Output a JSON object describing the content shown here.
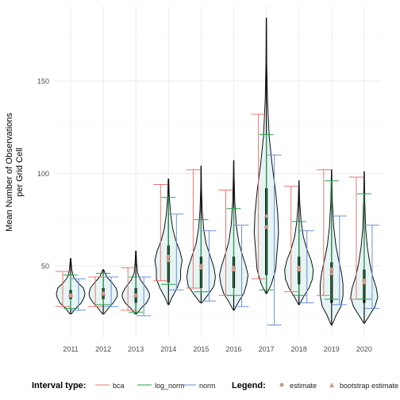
{
  "chart_data": {
    "type": "violin",
    "title": "",
    "xlabel": "",
    "ylabel_lines": [
      "Mean Number of Observations",
      "per Grid Cell"
    ],
    "categories": [
      "2011",
      "2012",
      "2013",
      "2014",
      "2015",
      "2016",
      "2017",
      "2018",
      "2019",
      "2020"
    ],
    "y_ticks": [
      50,
      100,
      150
    ],
    "ylim": [
      17,
      186
    ],
    "grid": true,
    "colors": {
      "bca": "#E8776F",
      "log_norm": "#1FA34A",
      "norm": "#6A8FD9",
      "violin_fill": "#E6F4F4",
      "points": "#C9998A"
    },
    "legend": {
      "placement": "bottom",
      "interval_title": "Interval type:",
      "interval_items": [
        "bca",
        "log_norm",
        "norm"
      ],
      "marker_title": "Legend:",
      "marker_items": [
        "estimate",
        "bootstrap estimate"
      ]
    },
    "violins": [
      {
        "year": "2011",
        "min": 24,
        "max": 54,
        "q1": 32,
        "med": 35,
        "q3": 37,
        "profile": [
          [
            24,
            0.05
          ],
          [
            27,
            0.35
          ],
          [
            30,
            0.75
          ],
          [
            33,
            0.95
          ],
          [
            35,
            1.0
          ],
          [
            38,
            0.9
          ],
          [
            41,
            0.5
          ],
          [
            44,
            0.2
          ],
          [
            48,
            0.08
          ],
          [
            54,
            0.02
          ]
        ]
      },
      {
        "year": "2012",
        "min": 24,
        "max": 48,
        "q1": 32,
        "med": 35,
        "q3": 38,
        "profile": [
          [
            24,
            0.05
          ],
          [
            27,
            0.35
          ],
          [
            30,
            0.7
          ],
          [
            33,
            0.95
          ],
          [
            35,
            1.0
          ],
          [
            38,
            0.9
          ],
          [
            41,
            0.6
          ],
          [
            44,
            0.25
          ],
          [
            47,
            0.08
          ],
          [
            48,
            0.03
          ]
        ]
      },
      {
        "year": "2013",
        "min": 24,
        "max": 58,
        "q1": 30,
        "med": 34,
        "q3": 38,
        "profile": [
          [
            24,
            0.05
          ],
          [
            27,
            0.35
          ],
          [
            30,
            0.75
          ],
          [
            33,
            0.95
          ],
          [
            35,
            0.95
          ],
          [
            38,
            0.75
          ],
          [
            42,
            0.35
          ],
          [
            46,
            0.12
          ],
          [
            52,
            0.05
          ],
          [
            58,
            0.02
          ]
        ]
      },
      {
        "year": "2014",
        "min": 29,
        "max": 97,
        "q1": 41,
        "med": 54,
        "q3": 61,
        "profile": [
          [
            29,
            0.03
          ],
          [
            33,
            0.25
          ],
          [
            38,
            0.6
          ],
          [
            43,
            0.85
          ],
          [
            48,
            0.85
          ],
          [
            53,
            0.95
          ],
          [
            58,
            0.8
          ],
          [
            64,
            0.5
          ],
          [
            70,
            0.3
          ],
          [
            78,
            0.15
          ],
          [
            88,
            0.05
          ],
          [
            97,
            0.02
          ]
        ]
      },
      {
        "year": "2015",
        "min": 30,
        "max": 104,
        "q1": 38,
        "med": 48,
        "q3": 55,
        "profile": [
          [
            30,
            0.05
          ],
          [
            34,
            0.45
          ],
          [
            39,
            0.9
          ],
          [
            44,
            1.0
          ],
          [
            49,
            0.9
          ],
          [
            55,
            0.65
          ],
          [
            62,
            0.35
          ],
          [
            70,
            0.18
          ],
          [
            80,
            0.08
          ],
          [
            92,
            0.03
          ],
          [
            104,
            0.01
          ]
        ]
      },
      {
        "year": "2016",
        "min": 26,
        "max": 107,
        "q1": 38,
        "med": 46,
        "q3": 55,
        "profile": [
          [
            26,
            0.03
          ],
          [
            30,
            0.3
          ],
          [
            35,
            0.7
          ],
          [
            40,
            0.9
          ],
          [
            45,
            1.0
          ],
          [
            50,
            0.85
          ],
          [
            56,
            0.6
          ],
          [
            63,
            0.35
          ],
          [
            72,
            0.18
          ],
          [
            85,
            0.07
          ],
          [
            100,
            0.02
          ],
          [
            107,
            0.01
          ]
        ]
      },
      {
        "year": "2017",
        "min": 35,
        "max": 184,
        "q1": 45,
        "med": 63,
        "q3": 92,
        "profile": [
          [
            35,
            0.03
          ],
          [
            40,
            0.35
          ],
          [
            48,
            0.65
          ],
          [
            58,
            0.75
          ],
          [
            68,
            0.85
          ],
          [
            78,
            0.8
          ],
          [
            90,
            0.65
          ],
          [
            105,
            0.4
          ],
          [
            120,
            0.2
          ],
          [
            140,
            0.08
          ],
          [
            160,
            0.03
          ],
          [
            184,
            0.01
          ]
        ]
      },
      {
        "year": "2018",
        "min": 29,
        "max": 96,
        "q1": 40,
        "med": 47,
        "q3": 55,
        "profile": [
          [
            29,
            0.03
          ],
          [
            33,
            0.3
          ],
          [
            38,
            0.7
          ],
          [
            43,
            0.95
          ],
          [
            48,
            1.0
          ],
          [
            53,
            0.85
          ],
          [
            59,
            0.55
          ],
          [
            66,
            0.3
          ],
          [
            74,
            0.15
          ],
          [
            85,
            0.05
          ],
          [
            96,
            0.01
          ]
        ]
      },
      {
        "year": "2019",
        "min": 18,
        "max": 102,
        "q1": 30,
        "med": 40,
        "q3": 52,
        "profile": [
          [
            18,
            0.03
          ],
          [
            23,
            0.3
          ],
          [
            28,
            0.65
          ],
          [
            34,
            0.8
          ],
          [
            40,
            0.8
          ],
          [
            46,
            0.7
          ],
          [
            53,
            0.5
          ],
          [
            61,
            0.3
          ],
          [
            71,
            0.15
          ],
          [
            85,
            0.05
          ],
          [
            102,
            0.01
          ]
        ]
      },
      {
        "year": "2020",
        "min": 19,
        "max": 101,
        "q1": 30,
        "med": 38,
        "q3": 48,
        "profile": [
          [
            19,
            0.03
          ],
          [
            23,
            0.35
          ],
          [
            28,
            0.75
          ],
          [
            33,
            0.95
          ],
          [
            38,
            0.85
          ],
          [
            44,
            0.6
          ],
          [
            51,
            0.4
          ],
          [
            60,
            0.22
          ],
          [
            70,
            0.1
          ],
          [
            85,
            0.04
          ],
          [
            101,
            0.01
          ]
        ]
      }
    ],
    "intervals": {
      "bca": [
        [
          28,
          47
        ],
        [
          28,
          44
        ],
        [
          26,
          49
        ],
        [
          42,
          94
        ],
        [
          38,
          102
        ],
        [
          34,
          91
        ],
        [
          43,
          132
        ],
        [
          36,
          93
        ],
        [
          34,
          102
        ],
        [
          32,
          98
        ]
      ],
      "log_norm": [
        [
          27,
          45
        ],
        [
          29,
          46
        ],
        [
          25,
          44
        ],
        [
          40,
          87
        ],
        [
          36,
          75
        ],
        [
          34,
          81
        ],
        [
          37,
          121
        ],
        [
          34,
          74
        ],
        [
          32,
          96
        ],
        [
          32,
          89
        ]
      ],
      "norm": [
        [
          26,
          43
        ],
        [
          28,
          44
        ],
        [
          23,
          44
        ],
        [
          37,
          78
        ],
        [
          31,
          69
        ],
        [
          28,
          72
        ],
        [
          18,
          110
        ],
        [
          30,
          69
        ],
        [
          29,
          77
        ],
        [
          27,
          72
        ]
      ]
    },
    "estimates": [
      34,
      35,
      34,
      55,
      50,
      49,
      71,
      49,
      48,
      42
    ],
    "bootstrap_estimates": [
      34,
      35,
      34,
      53,
      49,
      48,
      77,
      48,
      46,
      41
    ]
  }
}
